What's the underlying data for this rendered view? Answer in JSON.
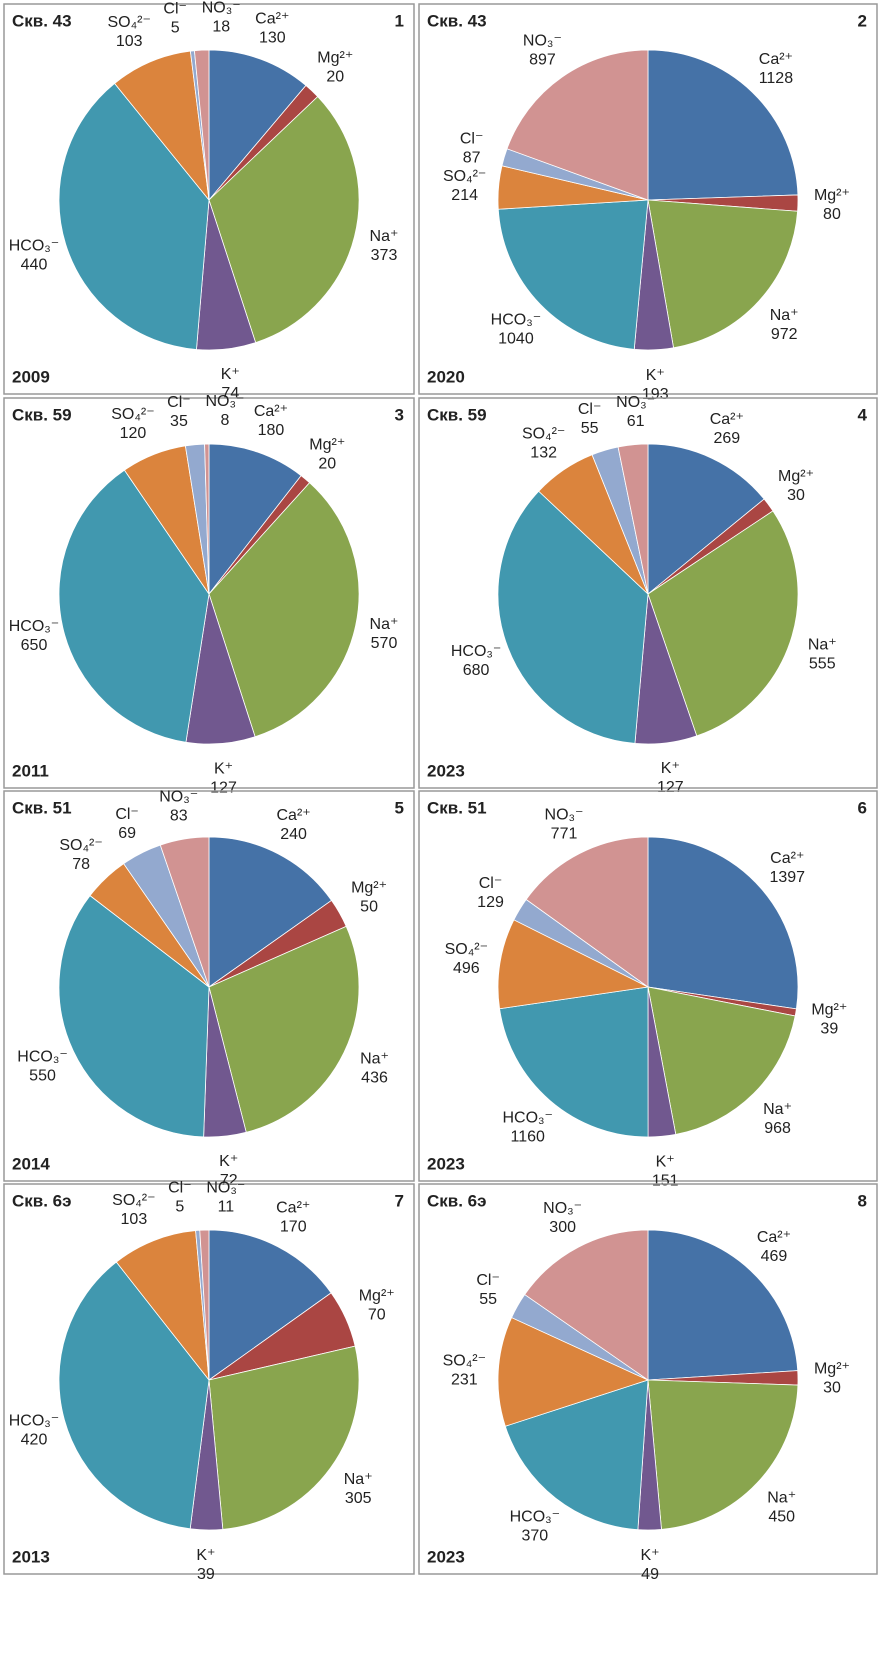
{
  "chart_data": [
    {
      "type": "pie",
      "title": "Скв. 43",
      "panel": "1",
      "year": "2009",
      "categories": [
        "Ca²⁺",
        "Mg²⁺",
        "Na⁺",
        "K⁺",
        "HCO₃⁻",
        "SO₄²⁻",
        "Cl⁻",
        "NO₃⁻"
      ],
      "values": [
        130,
        20,
        373,
        74,
        440,
        103,
        5,
        18
      ],
      "colors": [
        "#4572a7",
        "#aa4643",
        "#89a54e",
        "#71588f",
        "#4198af",
        "#db843d",
        "#93a9cf",
        "#d19392"
      ]
    },
    {
      "type": "pie",
      "title": "Скв. 43",
      "panel": "2",
      "year": "2020",
      "categories": [
        "Ca²⁺",
        "Mg²⁺",
        "Na⁺",
        "K⁺",
        "HCO₃⁻",
        "SO₄²⁻",
        "Cl⁻",
        "NO₃⁻"
      ],
      "values": [
        1128,
        80,
        972,
        193,
        1040,
        214,
        87,
        897
      ],
      "colors": [
        "#4572a7",
        "#aa4643",
        "#89a54e",
        "#71588f",
        "#4198af",
        "#db843d",
        "#93a9cf",
        "#d19392"
      ]
    },
    {
      "type": "pie",
      "title": "Скв. 59",
      "panel": "3",
      "year": "2011",
      "categories": [
        "Ca²⁺",
        "Mg²⁺",
        "Na⁺",
        "K⁺",
        "HCO₃⁻",
        "SO₄²⁻",
        "Cl⁻",
        "NO₃⁻"
      ],
      "values": [
        180,
        20,
        570,
        127,
        650,
        120,
        35,
        8
      ],
      "colors": [
        "#4572a7",
        "#aa4643",
        "#89a54e",
        "#71588f",
        "#4198af",
        "#db843d",
        "#93a9cf",
        "#d19392"
      ]
    },
    {
      "type": "pie",
      "title": "Скв. 59",
      "panel": "4",
      "year": "2023",
      "categories": [
        "Ca²⁺",
        "Mg²⁺",
        "Na⁺",
        "K⁺",
        "HCO₃⁻",
        "SO₄²⁻",
        "Cl⁻",
        "NO₃⁻"
      ],
      "values": [
        269,
        30,
        555,
        127,
        680,
        132,
        55,
        61
      ],
      "colors": [
        "#4572a7",
        "#aa4643",
        "#89a54e",
        "#71588f",
        "#4198af",
        "#db843d",
        "#93a9cf",
        "#d19392"
      ]
    },
    {
      "type": "pie",
      "title": "Скв. 51",
      "panel": "5",
      "year": "2014",
      "categories": [
        "Ca²⁺",
        "Mg²⁺",
        "Na⁺",
        "K⁺",
        "HCO₃⁻",
        "SO₄²⁻",
        "Cl⁻",
        "NO₃⁻"
      ],
      "values": [
        240,
        50,
        436,
        72,
        550,
        78,
        69,
        83
      ],
      "colors": [
        "#4572a7",
        "#aa4643",
        "#89a54e",
        "#71588f",
        "#4198af",
        "#db843d",
        "#93a9cf",
        "#d19392"
      ]
    },
    {
      "type": "pie",
      "title": "Скв. 51",
      "panel": "6",
      "year": "2023",
      "categories": [
        "Ca²⁺",
        "Mg²⁺",
        "Na⁺",
        "K⁺",
        "HCO₃⁻",
        "SO₄²⁻",
        "Cl⁻",
        "NO₃⁻"
      ],
      "values": [
        1397,
        39,
        968,
        151,
        1160,
        496,
        129,
        771
      ],
      "colors": [
        "#4572a7",
        "#aa4643",
        "#89a54e",
        "#71588f",
        "#4198af",
        "#db843d",
        "#93a9cf",
        "#d19392"
      ]
    },
    {
      "type": "pie",
      "title": "Скв. 6э",
      "panel": "7",
      "year": "2013",
      "categories": [
        "Ca²⁺",
        "Mg²⁺",
        "Na⁺",
        "K⁺",
        "HCO₃⁻",
        "SO₄²⁻",
        "Cl⁻",
        "NO₃⁻"
      ],
      "values": [
        170,
        70,
        305,
        39,
        420,
        103,
        5,
        11
      ],
      "colors": [
        "#4572a7",
        "#aa4643",
        "#89a54e",
        "#71588f",
        "#4198af",
        "#db843d",
        "#93a9cf",
        "#d19392"
      ]
    },
    {
      "type": "pie",
      "title": "Скв. 6э",
      "panel": "8",
      "year": "2023",
      "categories": [
        "Ca²⁺",
        "Mg²⁺",
        "Na⁺",
        "K⁺",
        "HCO₃⁻",
        "SO₄²⁻",
        "Cl⁻",
        "NO₃⁻"
      ],
      "values": [
        469,
        30,
        450,
        49,
        370,
        231,
        55,
        300
      ],
      "colors": [
        "#4572a7",
        "#aa4643",
        "#89a54e",
        "#71588f",
        "#4198af",
        "#db843d",
        "#93a9cf",
        "#d19392"
      ]
    }
  ]
}
